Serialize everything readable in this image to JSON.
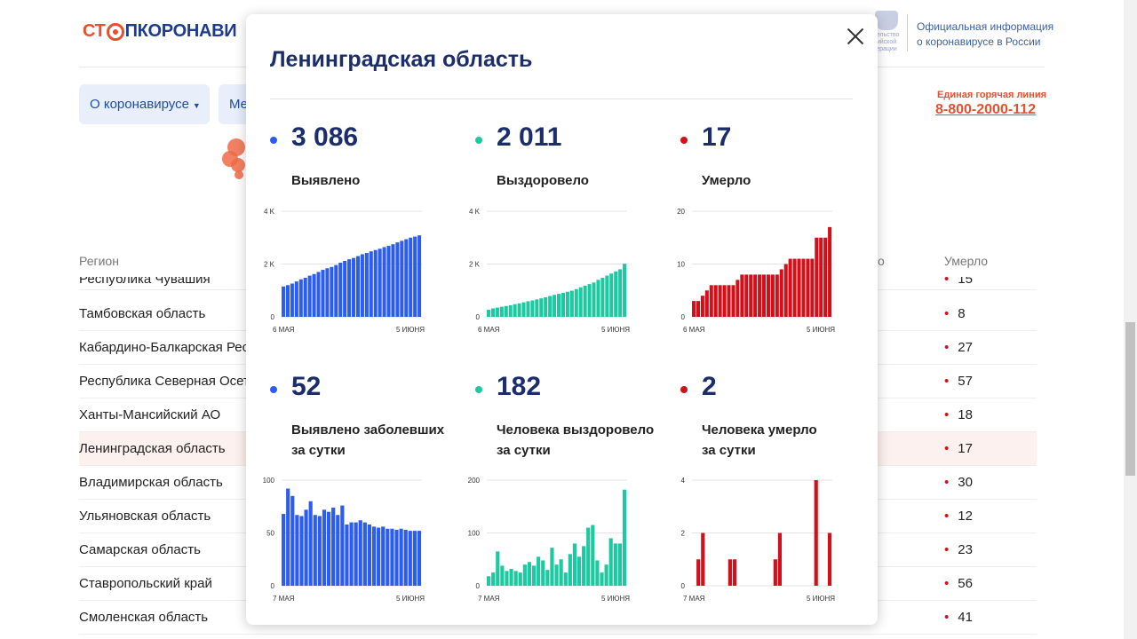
{
  "header": {
    "logo_part1": "СТ",
    "logo_part2": "ПКОРОНАВИ",
    "emblem_text": "тельство ийской ерации",
    "official_line1": "Официальная информация",
    "official_line2": "о коронавирусе в России",
    "hotline_label": "Единая горячая линия",
    "hotline_number": "8-800-2000-112"
  },
  "nav": {
    "about_label": "О коронавирусе",
    "second_label": "Ме"
  },
  "table": {
    "col_region": "Регион",
    "col_partial": "о",
    "col_deaths": "Умерло",
    "rows": [
      {
        "region": "Республика Чувашия",
        "deaths": "15"
      },
      {
        "region": "Тамбовская область",
        "deaths": "8"
      },
      {
        "region": "Кабардино-Балкарская Рес",
        "deaths": "27"
      },
      {
        "region": "Республика Северная Осет",
        "deaths": "57"
      },
      {
        "region": "Ханты-Мансийский АО",
        "deaths": "18"
      },
      {
        "region": "Ленинградская область",
        "deaths": "17"
      },
      {
        "region": "Владимирская область",
        "deaths": "30"
      },
      {
        "region": "Ульяновская область",
        "deaths": "12"
      },
      {
        "region": "Самарская область",
        "deaths": "23"
      },
      {
        "region": "Ставропольский край",
        "deaths": "56"
      },
      {
        "region": "Смоленская область",
        "deaths": "41"
      }
    ]
  },
  "modal": {
    "title": "Ленинградская область",
    "stats": [
      {
        "value": "3 086",
        "label1": "Выявлено",
        "label2": "",
        "color": "#2d5df0"
      },
      {
        "value": "2 011",
        "label1": "Выздоровело",
        "label2": "",
        "color": "#1ec8a0"
      },
      {
        "value": "17",
        "label1": "Умерло",
        "label2": "",
        "color": "#d3101a"
      },
      {
        "value": "52",
        "label1": "Выявлено заболевших",
        "label2": "за сутки",
        "color": "#2d5df0"
      },
      {
        "value": "182",
        "label1": "Человека выздоровело",
        "label2": "за сутки",
        "color": "#1ec8a0"
      },
      {
        "value": "2",
        "label1": "Человека умерло",
        "label2": "за сутки",
        "color": "#d3101a"
      }
    ]
  },
  "colors": {
    "blue": "#2d5df0",
    "green": "#1ec8a0",
    "red": "#d3101a"
  },
  "chart_data": [
    {
      "type": "bar",
      "series_color": "#2d5df0",
      "x_start_label": "6 МАЯ",
      "x_end_label": "5 ИЮНЯ",
      "ylim": [
        0,
        4000
      ],
      "yticks": [
        0,
        2000,
        4000
      ],
      "ytick_labels": [
        "0",
        "2 K",
        "4 K"
      ],
      "values": [
        1150,
        1200,
        1260,
        1340,
        1420,
        1480,
        1560,
        1620,
        1700,
        1780,
        1840,
        1890,
        1960,
        2050,
        2120,
        2180,
        2230,
        2300,
        2370,
        2420,
        2480,
        2530,
        2580,
        2640,
        2690,
        2750,
        2820,
        2880,
        2940,
        3000,
        3040,
        3086
      ]
    },
    {
      "type": "bar",
      "series_color": "#1ec8a0",
      "x_start_label": "6 МАЯ",
      "x_end_label": "5 ИЮНЯ",
      "ylim": [
        0,
        4000
      ],
      "yticks": [
        0,
        2000,
        4000
      ],
      "ytick_labels": [
        "0",
        "2 K",
        "4 K"
      ],
      "values": [
        270,
        320,
        350,
        380,
        410,
        440,
        480,
        510,
        550,
        590,
        620,
        660,
        700,
        740,
        790,
        830,
        870,
        910,
        950,
        990,
        1050,
        1120,
        1180,
        1240,
        1300,
        1400,
        1480,
        1560,
        1640,
        1720,
        1800,
        2011
      ]
    },
    {
      "type": "bar",
      "series_color": "#d3101a",
      "x_start_label": "6 МАЯ",
      "x_end_label": "5 ИЮНЯ",
      "ylim": [
        0,
        20
      ],
      "yticks": [
        0,
        10,
        20
      ],
      "ytick_labels": [
        "0",
        "10",
        "20"
      ],
      "values": [
        3,
        3,
        4,
        5,
        6,
        6,
        6,
        6,
        6,
        6,
        7,
        8,
        8,
        8,
        8,
        8,
        8,
        8,
        8,
        8,
        9,
        10,
        11,
        11,
        11,
        11,
        11,
        11,
        15,
        15,
        15,
        17
      ]
    },
    {
      "type": "bar",
      "series_color": "#2d5df0",
      "x_start_label": "7 МАЯ",
      "x_end_label": "5 ИЮНЯ",
      "ylim": [
        0,
        100
      ],
      "yticks": [
        0,
        50,
        100
      ],
      "ytick_labels": [
        "0",
        "50",
        "100"
      ],
      "values": [
        68,
        92,
        85,
        67,
        66,
        72,
        80,
        67,
        66,
        72,
        70,
        74,
        67,
        76,
        58,
        60,
        60,
        62,
        60,
        58,
        56,
        55,
        56,
        54,
        54,
        53,
        54,
        53,
        52,
        52,
        52
      ]
    },
    {
      "type": "bar",
      "series_color": "#1ec8a0",
      "x_start_label": "7 МАЯ",
      "x_end_label": "5 ИЮНЯ",
      "ylim": [
        0,
        200
      ],
      "yticks": [
        0,
        100,
        200
      ],
      "ytick_labels": [
        "0",
        "100",
        "200"
      ],
      "values": [
        18,
        25,
        65,
        38,
        28,
        32,
        28,
        25,
        40,
        45,
        38,
        55,
        48,
        30,
        72,
        40,
        50,
        25,
        60,
        80,
        55,
        75,
        110,
        115,
        48,
        25,
        40,
        90,
        80,
        80,
        182
      ]
    },
    {
      "type": "bar",
      "series_color": "#d3101a",
      "x_start_label": "7 МАЯ",
      "x_end_label": "5 ИЮНЯ",
      "ylim": [
        0,
        4
      ],
      "yticks": [
        0,
        2,
        4
      ],
      "ytick_labels": [
        "0",
        "2",
        "4"
      ],
      "values": [
        0,
        1,
        2,
        0,
        0,
        0,
        0,
        0,
        1,
        1,
        0,
        0,
        0,
        0,
        0,
        0,
        0,
        0,
        1,
        2,
        0,
        0,
        0,
        0,
        0,
        0,
        0,
        4,
        0,
        0,
        2
      ]
    }
  ]
}
